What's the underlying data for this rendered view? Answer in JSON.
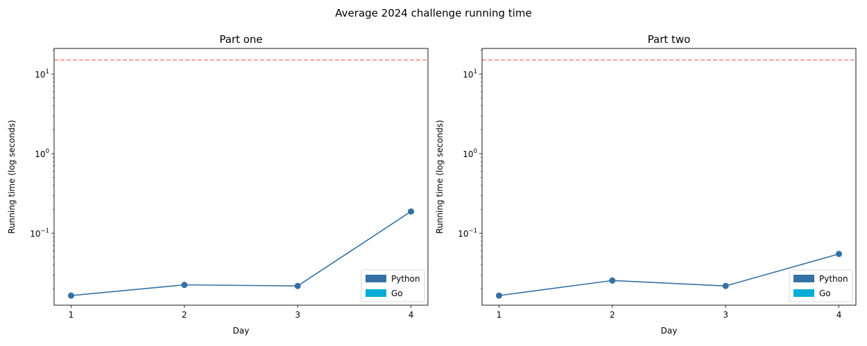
{
  "figure_title": "Average 2024 challenge running time",
  "chart_data": [
    {
      "type": "line",
      "title": "Part one",
      "xlabel": "Day",
      "ylabel": "Running time (log seconds)",
      "yscale": "log",
      "categories": [
        1,
        2,
        3,
        4
      ],
      "ylim": [
        0.0125,
        21
      ],
      "yticks": [
        {
          "value": 0.1,
          "base": "10",
          "exp": "−1"
        },
        {
          "value": 1,
          "base": "10",
          "exp": "0"
        },
        {
          "value": 10,
          "base": "10",
          "exp": "1"
        }
      ],
      "series": [
        {
          "name": "Python",
          "color": "#3470a3",
          "x": [
            1,
            2,
            3,
            4
          ],
          "values": [
            0.0165,
            0.0225,
            0.0218,
            0.188
          ],
          "markers": true
        }
      ],
      "reference_line": {
        "value": 15,
        "color": "#ff7f7f",
        "style": "dashed"
      },
      "legend": {
        "position": "lower right",
        "entries": [
          {
            "label": "Python",
            "color": "#3470a3"
          },
          {
            "label": "Go",
            "color": "#00add8"
          }
        ]
      },
      "grid": false
    },
    {
      "type": "line",
      "title": "Part two",
      "xlabel": "Day",
      "ylabel": "Running time (log seconds)",
      "yscale": "log",
      "categories": [
        1,
        2,
        3,
        4
      ],
      "ylim": [
        0.0125,
        21
      ],
      "yticks": [
        {
          "value": 0.1,
          "base": "10",
          "exp": "−1"
        },
        {
          "value": 1,
          "base": "10",
          "exp": "0"
        },
        {
          "value": 10,
          "base": "10",
          "exp": "1"
        }
      ],
      "series": [
        {
          "name": "Python",
          "color": "#3470a3",
          "x": [
            1,
            2,
            3,
            4
          ],
          "values": [
            0.0165,
            0.0255,
            0.0218,
            0.055
          ],
          "markers": true
        }
      ],
      "reference_line": {
        "value": 15,
        "color": "#ff7f7f",
        "style": "dashed"
      },
      "legend": {
        "position": "lower right",
        "entries": [
          {
            "label": "Python",
            "color": "#3470a3"
          },
          {
            "label": "Go",
            "color": "#00add8"
          }
        ]
      },
      "grid": false
    }
  ]
}
